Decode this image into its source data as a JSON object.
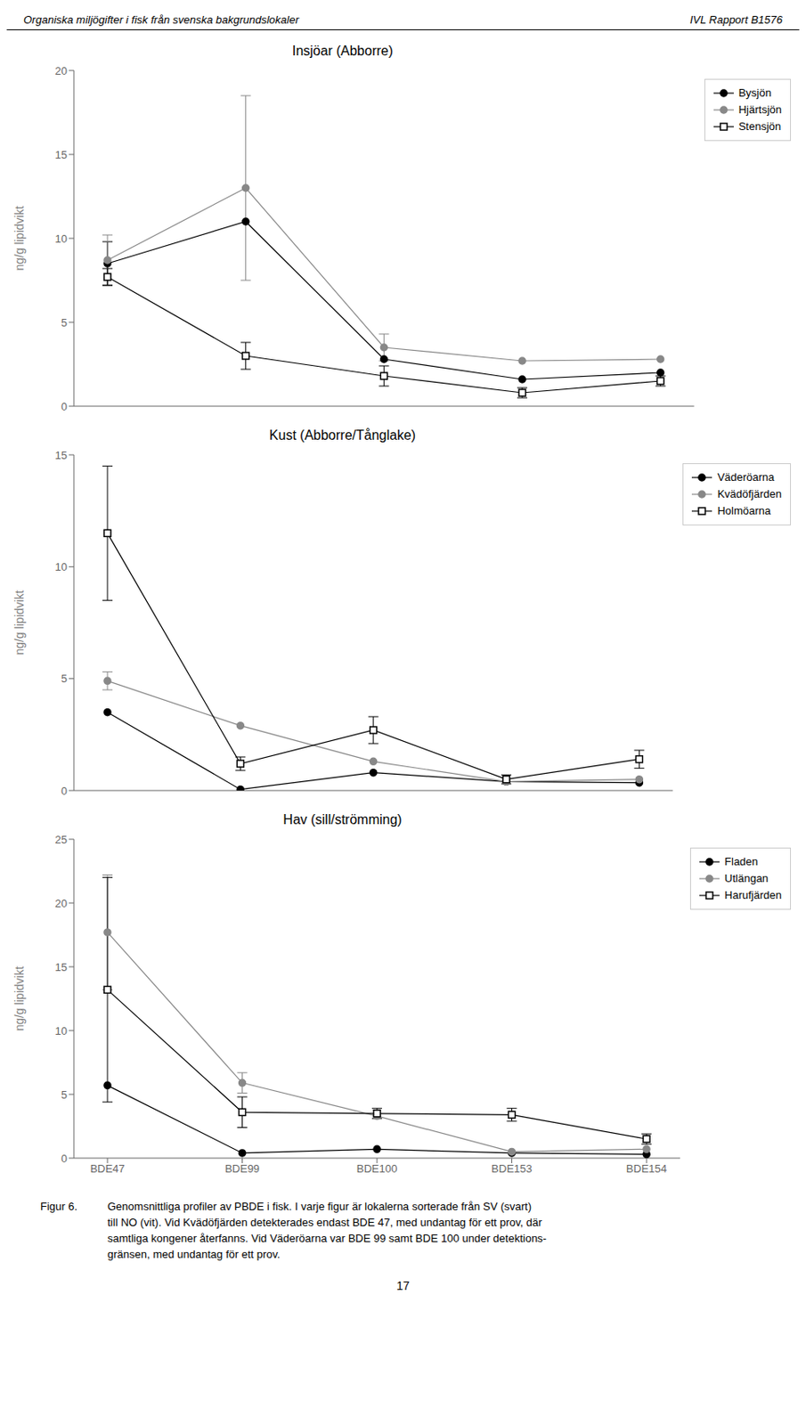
{
  "chart_data": [
    {
      "type": "line",
      "title": "Insjöar (Abborre)",
      "y_label": "ng/g lipidvikt",
      "categories": [
        "BDE47",
        "BDE99",
        "BDE100",
        "BDE153",
        "BDE154"
      ],
      "ylim": [
        0,
        20
      ],
      "yticks": [
        0,
        5,
        10,
        15,
        20
      ],
      "grid": false,
      "legend": "upper right",
      "tick_labels": "y",
      "series": [
        {
          "name": "Bysjön",
          "color": "#000000",
          "marker": "circle",
          "values": [
            8.5,
            11.0,
            2.8,
            1.6,
            2.0
          ],
          "errors": [
            1.3,
            0.0,
            0.0,
            0.0,
            0.0
          ]
        },
        {
          "name": "Hjärtsjön",
          "color": "#888888",
          "marker": "circle",
          "values": [
            8.7,
            13.0,
            3.5,
            2.7,
            2.8
          ],
          "errors": [
            1.5,
            5.5,
            0.8,
            0.0,
            0.0
          ]
        },
        {
          "name": "Stensjön",
          "color": "#000000",
          "marker": "square_open",
          "values": [
            7.7,
            3.0,
            1.8,
            0.8,
            1.5
          ],
          "errors": [
            0.5,
            0.8,
            0.6,
            0.3,
            0.3
          ]
        }
      ]
    },
    {
      "type": "line",
      "title": "Kust (Abborre/Tånglake)",
      "y_label": "ng/g lipidvikt",
      "categories": [
        "BDE47",
        "BDE99",
        "BDE100",
        "BDE153",
        "BDE154"
      ],
      "ylim": [
        0,
        15
      ],
      "yticks": [
        0,
        5,
        10,
        15
      ],
      "grid": false,
      "legend": "upper right",
      "tick_labels": "y",
      "series": [
        {
          "name": "Väderöarna",
          "color": "#000000",
          "marker": "circle",
          "values": [
            3.5,
            0.05,
            0.8,
            0.4,
            0.35
          ],
          "errors": [
            0.0,
            0.0,
            0.0,
            0.0,
            0.0
          ]
        },
        {
          "name": "Kvädöfjärden",
          "color": "#888888",
          "marker": "circle",
          "values": [
            4.9,
            2.9,
            1.3,
            0.4,
            0.5
          ],
          "errors": [
            0.4,
            0.0,
            0.0,
            0.0,
            0.0
          ]
        },
        {
          "name": "Holmöarna",
          "color": "#000000",
          "marker": "square_open",
          "values": [
            11.5,
            1.2,
            2.7,
            0.5,
            1.4
          ],
          "errors": [
            3.0,
            0.3,
            0.6,
            0.2,
            0.4
          ]
        }
      ]
    },
    {
      "type": "line",
      "title": "Hav (sill/strömming)",
      "y_label": "ng/g lipidvikt",
      "categories": [
        "BDE47",
        "BDE99",
        "BDE100",
        "BDE153",
        "BDE154"
      ],
      "ylim": [
        0,
        25
      ],
      "yticks": [
        0,
        5,
        10,
        15,
        20,
        25
      ],
      "grid": false,
      "legend": "upper right",
      "series": [
        {
          "name": "Fladen",
          "color": "#000000",
          "marker": "circle",
          "values": [
            5.7,
            0.4,
            0.7,
            0.4,
            0.3
          ],
          "errors": [
            0.0,
            0.0,
            0.0,
            0.0,
            0.0
          ]
        },
        {
          "name": "Utlängan",
          "color": "#888888",
          "marker": "circle",
          "values": [
            17.7,
            5.9,
            3.3,
            0.5,
            0.7
          ],
          "errors": [
            4.5,
            0.8,
            0.0,
            0.0,
            0.0
          ]
        },
        {
          "name": "Harufjärden",
          "color": "#000000",
          "marker": "square_open",
          "values": [
            13.2,
            3.6,
            3.5,
            3.4,
            1.5
          ],
          "errors": [
            8.8,
            1.2,
            0.4,
            0.5,
            0.4
          ]
        }
      ]
    }
  ],
  "annotations": [
    "Organiska miljögifter i fisk från svenska bakgrundslokaler",
    "IVL Rapport B1576",
    "Figur 6.",
    "Genomsnittliga profiler av PBDE i fisk. I varje figur är lokalerna sorterade från SV (svart)",
    "till NO (vit). Vid Kvädöfjärden detekterades endast BDE 47, med undantag för ett prov, där",
    "samtliga kongener återfanns. Vid Väderöarna var BDE 99 samt BDE 100 under detektions-",
    "gränsen, med undantag för ett prov.",
    "17"
  ]
}
